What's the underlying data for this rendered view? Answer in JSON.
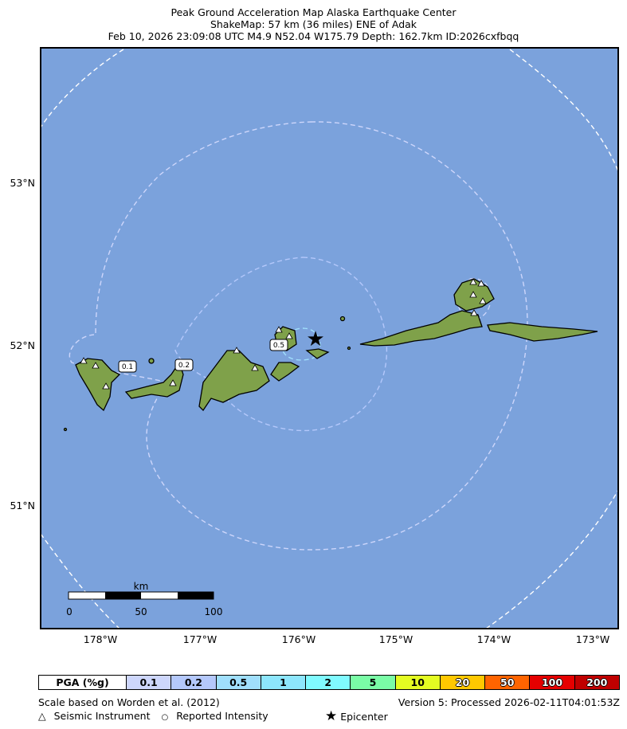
{
  "header": {
    "line1": "Peak Ground Acceleration Map Alaska Earthquake Center",
    "line2": "ShakeMap: 57 km (36 miles) ENE of Adak",
    "line3": "Feb 10, 2026 23:09:08 UTC M4.9 N52.04 W175.79 Depth: 162.7km ID:2026cxfbqq"
  },
  "map": {
    "ocean_color": "#7ba2dc",
    "lon_ticks": [
      "178°W",
      "177°W",
      "176°W",
      "175°W",
      "174°W",
      "173°W"
    ],
    "lat_ticks": [
      "53°N",
      "52°N",
      "51°N"
    ],
    "contour_labels": [
      "0.1",
      "0.2",
      "0.5"
    ],
    "scale_bar": {
      "unit": "km",
      "labels": [
        "0",
        "50",
        "100"
      ]
    },
    "epicenter": {
      "lat": 52.04,
      "lon": -175.79
    }
  },
  "legend": {
    "title": "PGA (%g)",
    "bins": [
      {
        "label": "0.1",
        "color": "#cdd6fb"
      },
      {
        "label": "0.2",
        "color": "#b4c8fb"
      },
      {
        "label": "0.5",
        "color": "#a0dffc"
      },
      {
        "label": "1",
        "color": "#8de6fc"
      },
      {
        "label": "2",
        "color": "#80faff"
      },
      {
        "label": "5",
        "color": "#7afca6"
      },
      {
        "label": "10",
        "color": "#e4fc22"
      },
      {
        "label": "20",
        "color": "#ffc800"
      },
      {
        "label": "50",
        "color": "#ff6400"
      },
      {
        "label": "100",
        "color": "#e50000"
      },
      {
        "label": "200",
        "color": "#c00000"
      }
    ]
  },
  "footer": {
    "scale_note": "Scale based on Worden et al. (2012)",
    "version": "Version 5: Processed 2026-02-11T04:01:53Z",
    "seismic_symbol": "△",
    "seismic_label": "Seismic Instrument",
    "intensity_symbol": "○",
    "intensity_label": "Reported Intensity",
    "epicenter_symbol": "★",
    "epicenter_label": "Epicenter"
  }
}
